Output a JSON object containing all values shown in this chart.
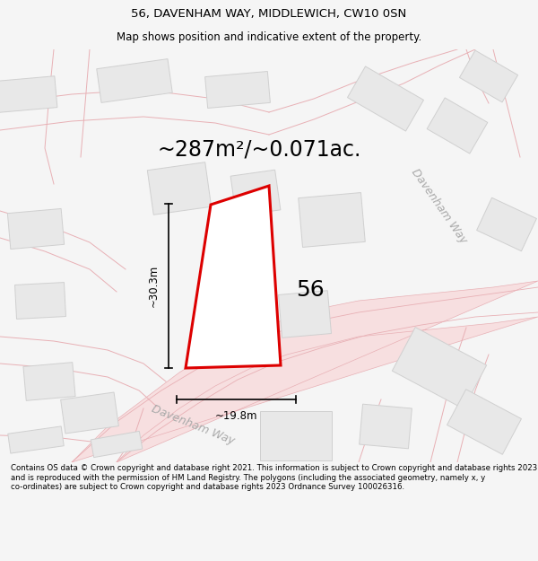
{
  "title_line1": "56, DAVENHAM WAY, MIDDLEWICH, CW10 0SN",
  "title_line2": "Map shows position and indicative extent of the property.",
  "area_text": "~287m²/~0.071ac.",
  "label_56": "56",
  "dim_height": "~30.3m",
  "dim_width": "~19.8m",
  "street_label": "Davenham Way",
  "street_label2": "Davenham Way",
  "footer_text": "Contains OS data © Crown copyright and database right 2021. This information is subject to Crown copyright and database rights 2023 and is reproduced with the permission of HM Land Registry. The polygons (including the associated geometry, namely x, y co-ordinates) are subject to Crown copyright and database rights 2023 Ordnance Survey 100026316.",
  "bg_color": "#f5f5f5",
  "map_bg": "#ffffff",
  "plot_outline_color": "#dd0000",
  "plot_fill_color": "#ffffff",
  "road_fill_color": "#f7dfe0",
  "road_line_color": "#e8b0b5",
  "building_color": "#e8e8e8",
  "building_outline": "#d0d0d0",
  "dim_color": "#000000",
  "title_fontsize": 9.5,
  "subtitle_fontsize": 8.5,
  "area_fontsize": 17,
  "label_fontsize": 18,
  "dim_fontsize": 8.5,
  "street_fontsize": 9,
  "footer_fontsize": 6.2
}
